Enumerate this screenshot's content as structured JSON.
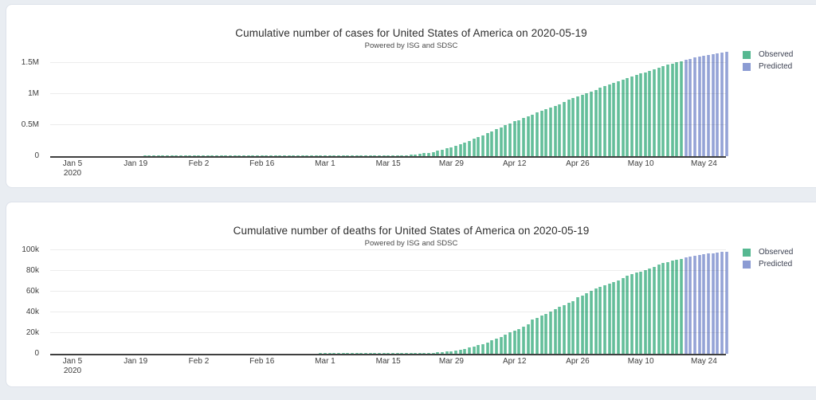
{
  "page": {
    "background": "#e9edf2",
    "card_background": "#ffffff"
  },
  "colors": {
    "observed": "#56b891",
    "observed_edge": "#8ed3b6",
    "predicted": "#8b9bd3",
    "predicted_edge": "#b4bde2",
    "axis": "#3f3f3f",
    "grid": "rgba(70,70,70,0.10)",
    "text": "#3d3d3d"
  },
  "legend": {
    "observed_label": "Observed",
    "predicted_label": "Predicted"
  },
  "chart_data": [
    {
      "type": "bar",
      "title": "Cumulative number of cases for United States of America on 2020-05-19",
      "subtitle": "Powered by ISG and SDSC",
      "x_start_date": "2020-01-05",
      "x_unit": "day",
      "legend_position": "top-right",
      "grid": true,
      "y_axis": {
        "max": 1690000,
        "ticks": [
          {
            "value": 0,
            "label": "0"
          },
          {
            "value": 500000,
            "label": "0.5M"
          },
          {
            "value": 1000000,
            "label": "1M"
          },
          {
            "value": 1500000,
            "label": "1.5M"
          }
        ]
      },
      "x_axis": {
        "ticks": [
          {
            "day": 0,
            "label": "Jan 5",
            "sublabel": "2020"
          },
          {
            "day": 14,
            "label": "Jan 19"
          },
          {
            "day": 28,
            "label": "Feb 2"
          },
          {
            "day": 42,
            "label": "Feb 16"
          },
          {
            "day": 56,
            "label": "Mar 1"
          },
          {
            "day": 70,
            "label": "Mar 15"
          },
          {
            "day": 84,
            "label": "Mar 29"
          },
          {
            "day": 98,
            "label": "Apr 12"
          },
          {
            "day": 112,
            "label": "Apr 26"
          },
          {
            "day": 126,
            "label": "May 10"
          },
          {
            "day": 140,
            "label": "May 24"
          }
        ]
      },
      "series": [
        {
          "name": "Observed",
          "color": "#56b891",
          "values": [
            0,
            0,
            0,
            0,
            0,
            0,
            0,
            0,
            0,
            0,
            0,
            0,
            0,
            0,
            0,
            0,
            1,
            1,
            1,
            2,
            2,
            5,
            5,
            5,
            5,
            5,
            7,
            8,
            8,
            11,
            11,
            11,
            11,
            11,
            11,
            11,
            11,
            12,
            12,
            13,
            13,
            13,
            13,
            13,
            13,
            13,
            13,
            15,
            15,
            15,
            15,
            15,
            15,
            16,
            16,
            24,
            30,
            53,
            73,
            104,
            174,
            237,
            403,
            519,
            594,
            782,
            1147,
            1586,
            2219,
            2978,
            3212,
            4679,
            6512,
            9169,
            13663,
            20030,
            26025,
            34898,
            46136,
            55231,
            68773,
            86613,
            104686,
            124665,
            143532,
            164620,
            189618,
            216721,
            245540,
            278458,
            312237,
            337933,
            368079,
            400549,
            432132,
            466033,
            501615,
            530830,
            557590,
            582594,
            609685,
            636350,
            667801,
            699706,
            726645,
            751273,
            776093,
            802583,
            830053,
            866646,
            905333,
            938154,
            965933,
            988197,
            1012582,
            1039909,
            1069424,
            1103461,
            1132539,
            1158040,
            1180375,
            1204351,
            1228603,
            1257023,
            1283929,
            1309541,
            1329260,
            1347881,
            1369964,
            1390406,
            1417774,
            1442824,
            1467820,
            1486757,
            1508308,
            1528568
          ]
        },
        {
          "name": "Predicted",
          "color": "#8b9bd3",
          "values": [
            1548000,
            1566000,
            1583000,
            1599000,
            1614000,
            1628000,
            1641000,
            1653000,
            1664000,
            1674000
          ]
        }
      ]
    },
    {
      "type": "bar",
      "title": "Cumulative number of deaths for United States of America on 2020-05-19",
      "subtitle": "Powered by ISG and SDSC",
      "x_start_date": "2020-01-05",
      "x_unit": "day",
      "legend_position": "top-right",
      "grid": true,
      "y_axis": {
        "max": 101500,
        "ticks": [
          {
            "value": 0,
            "label": "0"
          },
          {
            "value": 20000,
            "label": "20k"
          },
          {
            "value": 40000,
            "label": "40k"
          },
          {
            "value": 60000,
            "label": "60k"
          },
          {
            "value": 80000,
            "label": "80k"
          },
          {
            "value": 100000,
            "label": "100k"
          }
        ]
      },
      "x_axis": {
        "ticks": [
          {
            "day": 0,
            "label": "Jan 5",
            "sublabel": "2020"
          },
          {
            "day": 14,
            "label": "Jan 19"
          },
          {
            "day": 28,
            "label": "Feb 2"
          },
          {
            "day": 42,
            "label": "Feb 16"
          },
          {
            "day": 56,
            "label": "Mar 1"
          },
          {
            "day": 70,
            "label": "Mar 15"
          },
          {
            "day": 84,
            "label": "Mar 29"
          },
          {
            "day": 98,
            "label": "Apr 12"
          },
          {
            "day": 112,
            "label": "Apr 26"
          },
          {
            "day": 126,
            "label": "May 10"
          },
          {
            "day": 140,
            "label": "May 24"
          }
        ]
      },
      "series": [
        {
          "name": "Observed",
          "color": "#56b891",
          "values": [
            0,
            0,
            0,
            0,
            0,
            0,
            0,
            0,
            0,
            0,
            0,
            0,
            0,
            0,
            0,
            0,
            0,
            0,
            0,
            0,
            0,
            0,
            0,
            0,
            0,
            0,
            0,
            0,
            0,
            0,
            0,
            0,
            0,
            0,
            0,
            0,
            0,
            0,
            0,
            0,
            0,
            0,
            0,
            0,
            0,
            0,
            0,
            0,
            0,
            0,
            0,
            0,
            0,
            0,
            0,
            1,
            1,
            6,
            7,
            11,
            12,
            14,
            17,
            21,
            22,
            28,
            36,
            40,
            47,
            54,
            63,
            85,
            108,
            118,
            200,
            244,
            307,
            417,
            557,
            706,
            942,
            1209,
            1581,
            2026,
            2467,
            2978,
            3873,
            4757,
            5926,
            7087,
            8407,
            9619,
            10783,
            12798,
            14695,
            16478,
            18586,
            20463,
            22020,
            23529,
            25832,
            28326,
            32916,
            34905,
            36773,
            38664,
            40661,
            42853,
            45075,
            46978,
            48928,
            50948,
            54877,
            56259,
            58355,
            60495,
            62996,
            64789,
            66369,
            67682,
            68934,
            71078,
            73431,
            75662,
            77180,
            78795,
            79526,
            80682,
            82356,
            84119,
            85906,
            87530,
            88754,
            89932,
            90978,
            91921
          ]
        },
        {
          "name": "Predicted",
          "color": "#8b9bd3",
          "values": [
            92800,
            93700,
            94500,
            95300,
            96000,
            96600,
            97200,
            97700,
            98100,
            98500
          ]
        }
      ]
    }
  ]
}
